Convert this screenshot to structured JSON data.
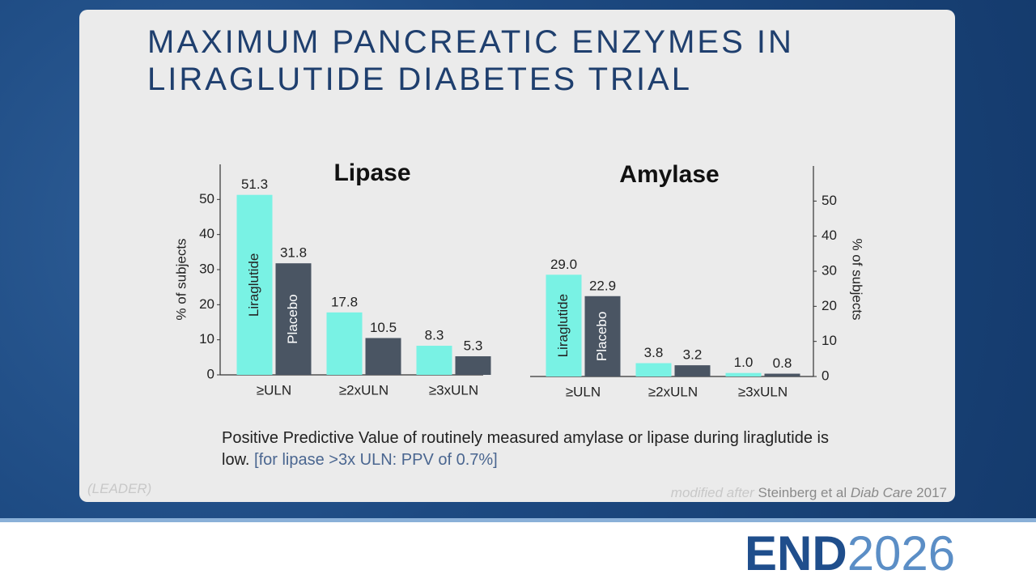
{
  "slide": {
    "title_lines": [
      "MAXIMUM PANCREATIC ENZYMES IN",
      "LIRAGLUTIDE DIABETES TRIAL"
    ],
    "note": "Positive Predictive Value of routinely measured amylase or lipase during liraglutide is low.",
    "note_highlight": "[for lipase >3x ULN: PPV of 0.7%]",
    "trial": "(LEADER)",
    "source_prefix": "modified after",
    "source_authors": "Steinberg et al",
    "source_journal": "Diab Care",
    "source_year": "2017",
    "logo_left": "END",
    "logo_right": "2026"
  },
  "chart_data": [
    {
      "type": "bar",
      "title": "Lipase",
      "y_label": "% of subjects",
      "y_axis_position": "left",
      "categories": [
        "≥ULN",
        "≥2xULN",
        "≥3xULN"
      ],
      "series": [
        {
          "name": "Liraglutide",
          "color": "#79f2e4",
          "values": [
            51.3,
            17.8,
            8.3
          ],
          "value_labels": [
            "51.3",
            "17.8",
            "8.3"
          ]
        },
        {
          "name": "Placebo",
          "color": "#4a5563",
          "values": [
            31.8,
            10.5,
            5.3
          ],
          "value_labels": [
            "31.8",
            "10.5",
            "5.3"
          ]
        }
      ],
      "ylim": [
        0,
        60
      ],
      "yticks": [
        0,
        10,
        20,
        30,
        40,
        50
      ]
    },
    {
      "type": "bar",
      "title": "Amylase",
      "y_label": "% of subjects",
      "y_axis_position": "right",
      "categories": [
        "≥ULN",
        "≥2xULN",
        "≥3xULN"
      ],
      "series": [
        {
          "name": "Liraglutide",
          "color": "#79f2e4",
          "values": [
            29,
            3.8,
            1
          ],
          "value_labels": [
            "29.0",
            "3.8",
            "1.0"
          ]
        },
        {
          "name": "Placebo",
          "color": "#4a5563",
          "values": [
            22.9,
            3.2,
            0.8
          ],
          "value_labels": [
            "22.9",
            "3.2",
            "0.8"
          ]
        }
      ],
      "ylim": [
        0,
        60
      ],
      "yticks": [
        0,
        10,
        20,
        30,
        40,
        50
      ]
    }
  ]
}
